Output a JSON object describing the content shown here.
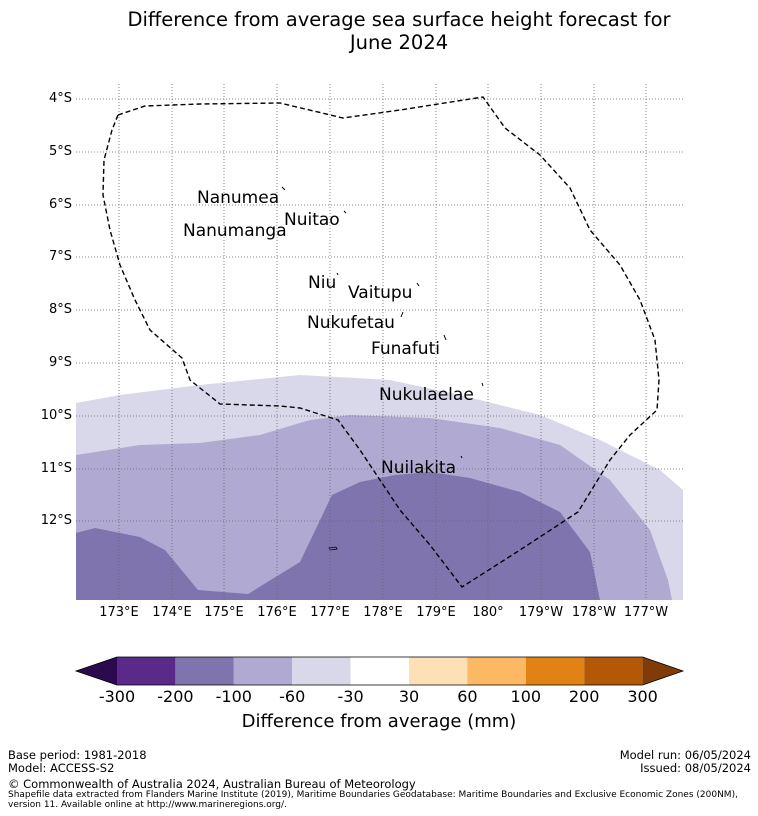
{
  "title": {
    "line1": "Difference from average sea surface height forecast for",
    "line2": "June 2024"
  },
  "latitude_labels": [
    "4°S",
    "5°S",
    "6°S",
    "7°S",
    "8°S",
    "9°S",
    "10°S",
    "11°S",
    "12°S"
  ],
  "longitude_labels": [
    "173°E",
    "174°E",
    "175°E",
    "176°E",
    "177°E",
    "178°E",
    "179°E",
    "180°",
    "179°W",
    "178°W",
    "177°W"
  ],
  "places": [
    "Nanumea",
    "Nuitao",
    "Nanumanga",
    "Niu",
    "Vaitupu",
    "Nukufetau",
    "Funafuti",
    "Nukulaelae",
    "Nuilakita"
  ],
  "colorbar": {
    "ticks": [
      "-300",
      "-200",
      "-100",
      "-60",
      "-30",
      "30",
      "60",
      "100",
      "200",
      "300"
    ],
    "colors": [
      "#2d0a4d",
      "#5a2a8a",
      "#8074ae",
      "#b0aad2",
      "#d8d8ea",
      "#ffffff",
      "#fee0b6",
      "#fdb863",
      "#e08214",
      "#b35806",
      "#7f3b08"
    ],
    "label": "Difference from average (mm)"
  },
  "map_fill_colors": {
    "band_30_60": "#d8d8ea",
    "band_60_100": "#b0aad2",
    "band_100_200": "#8074ae"
  },
  "footer": {
    "base_period": "Base period: 1981-2018",
    "model": "Model: ACCESS-S2",
    "model_run": "Model run: 06/05/2024",
    "issued": "Issued: 08/05/2024",
    "copyright": "© Commonwealth of Australia 2024, Australian Bureau of Meteorology",
    "shapefile_line1": "Shapefile data extracted from Flanders Marine Institute (2019), Maritime Boundaries Geodatabase: Maritime Boundaries and Exclusive Economic Zones (200NM),",
    "shapefile_line2": "version 11. Available online at http://www.marineregions.org/."
  }
}
